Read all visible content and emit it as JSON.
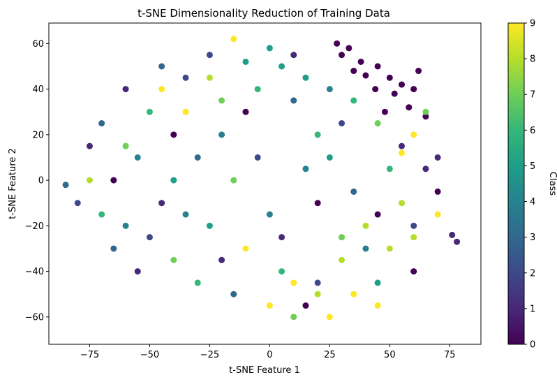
{
  "chart_data": {
    "type": "scatter",
    "title": "t-SNE Dimensionality Reduction of Training Data",
    "xlabel": "t-SNE Feature 1",
    "ylabel": "t-SNE Feature 2",
    "xlim": [
      -92,
      88
    ],
    "ylim": [
      -72,
      69
    ],
    "xticks": [
      -75,
      -50,
      -25,
      0,
      25,
      50,
      75
    ],
    "yticks": [
      -60,
      -40,
      -20,
      0,
      20,
      40,
      60
    ],
    "grid": false,
    "legend": "none",
    "colorbar": {
      "label": "Class",
      "min": 0,
      "max": 9,
      "ticks": [
        0,
        1,
        2,
        3,
        4,
        5,
        6,
        7,
        8,
        9
      ],
      "colormap": "viridis"
    },
    "colors": {
      "viridis": [
        "#440154",
        "#482878",
        "#3e4989",
        "#31688e",
        "#26828e",
        "#1f9e89",
        "#35b779",
        "#6ece58",
        "#b5de2b",
        "#fde725"
      ]
    },
    "series": [
      {
        "values": [
          {
            "x": 28,
            "y": 60,
            "c": 0
          },
          {
            "x": 33,
            "y": 58,
            "c": 0
          },
          {
            "x": 38,
            "y": 52,
            "c": 0
          },
          {
            "x": 45,
            "y": 50,
            "c": 0
          },
          {
            "x": 50,
            "y": 45,
            "c": 0
          },
          {
            "x": 55,
            "y": 42,
            "c": 0
          },
          {
            "x": 52,
            "y": 38,
            "c": 0
          },
          {
            "x": 60,
            "y": 40,
            "c": 0
          },
          {
            "x": 44,
            "y": 40,
            "c": 0
          },
          {
            "x": 58,
            "y": 32,
            "c": 0
          },
          {
            "x": 65,
            "y": 28,
            "c": 0
          },
          {
            "x": 48,
            "y": 30,
            "c": 0
          },
          {
            "x": 40,
            "y": 46,
            "c": 0
          },
          {
            "x": 62,
            "y": 48,
            "c": 0
          },
          {
            "x": 30,
            "y": 55,
            "c": 0
          },
          {
            "x": 35,
            "y": 48,
            "c": 0
          },
          {
            "x": -40,
            "y": 20,
            "c": 0
          },
          {
            "x": -65,
            "y": 0,
            "c": 0
          },
          {
            "x": 20,
            "y": -10,
            "c": 0
          },
          {
            "x": 60,
            "y": -40,
            "c": 0
          },
          {
            "x": 15,
            "y": -55,
            "c": 0
          },
          {
            "x": -10,
            "y": 30,
            "c": 0
          },
          {
            "x": 45,
            "y": -15,
            "c": 0
          },
          {
            "x": 70,
            "y": -5,
            "c": 0
          },
          {
            "x": -20,
            "y": -35,
            "c": 1
          },
          {
            "x": -55,
            "y": -40,
            "c": 1
          },
          {
            "x": 65,
            "y": 5,
            "c": 1
          },
          {
            "x": 70,
            "y": 10,
            "c": 1
          },
          {
            "x": -60,
            "y": 40,
            "c": 1
          },
          {
            "x": 10,
            "y": 55,
            "c": 1
          },
          {
            "x": -45,
            "y": -10,
            "c": 1
          },
          {
            "x": 5,
            "y": -25,
            "c": 1
          },
          {
            "x": 55,
            "y": 15,
            "c": 1
          },
          {
            "x": -75,
            "y": 15,
            "c": 1
          },
          {
            "x": 78,
            "y": -27,
            "c": 1
          },
          {
            "x": 76,
            "y": -24,
            "c": 1
          },
          {
            "x": -35,
            "y": 45,
            "c": 2
          },
          {
            "x": -80,
            "y": -10,
            "c": 2
          },
          {
            "x": -5,
            "y": 10,
            "c": 2
          },
          {
            "x": 30,
            "y": 25,
            "c": 2
          },
          {
            "x": -50,
            "y": -25,
            "c": 2
          },
          {
            "x": 20,
            "y": -45,
            "c": 2
          },
          {
            "x": -25,
            "y": 55,
            "c": 2
          },
          {
            "x": 60,
            "y": -20,
            "c": 2
          },
          {
            "x": -65,
            "y": -30,
            "c": 3
          },
          {
            "x": -30,
            "y": 10,
            "c": 3
          },
          {
            "x": 10,
            "y": 35,
            "c": 3
          },
          {
            "x": -45,
            "y": 50,
            "c": 3
          },
          {
            "x": -15,
            "y": -50,
            "c": 3
          },
          {
            "x": 35,
            "y": -5,
            "c": 3
          },
          {
            "x": -70,
            "y": 25,
            "c": 3
          },
          {
            "x": -85,
            "y": -2,
            "c": 3
          },
          {
            "x": -20,
            "y": 20,
            "c": 4
          },
          {
            "x": -55,
            "y": 10,
            "c": 4
          },
          {
            "x": 0,
            "y": -15,
            "c": 4
          },
          {
            "x": 25,
            "y": 40,
            "c": 4
          },
          {
            "x": -35,
            "y": -15,
            "c": 4
          },
          {
            "x": 40,
            "y": -30,
            "c": 4
          },
          {
            "x": -60,
            "y": -20,
            "c": 4
          },
          {
            "x": 15,
            "y": 5,
            "c": 4
          },
          {
            "x": 0,
            "y": 58,
            "c": 5
          },
          {
            "x": 5,
            "y": 50,
            "c": 5
          },
          {
            "x": -10,
            "y": 52,
            "c": 5
          },
          {
            "x": 15,
            "y": 45,
            "c": 5
          },
          {
            "x": -40,
            "y": 0,
            "c": 5
          },
          {
            "x": 25,
            "y": 10,
            "c": 5
          },
          {
            "x": -25,
            "y": -20,
            "c": 5
          },
          {
            "x": 45,
            "y": -45,
            "c": 5
          },
          {
            "x": -5,
            "y": 40,
            "c": 6
          },
          {
            "x": -50,
            "y": 30,
            "c": 6
          },
          {
            "x": 20,
            "y": 20,
            "c": 6
          },
          {
            "x": -70,
            "y": -15,
            "c": 6
          },
          {
            "x": 5,
            "y": -40,
            "c": 6
          },
          {
            "x": 50,
            "y": 5,
            "c": 6
          },
          {
            "x": -30,
            "y": -45,
            "c": 6
          },
          {
            "x": 35,
            "y": 35,
            "c": 6
          },
          {
            "x": -15,
            "y": 0,
            "c": 7
          },
          {
            "x": 45,
            "y": 25,
            "c": 7
          },
          {
            "x": -60,
            "y": 15,
            "c": 7
          },
          {
            "x": 30,
            "y": -25,
            "c": 7
          },
          {
            "x": -40,
            "y": -35,
            "c": 7
          },
          {
            "x": 65,
            "y": 30,
            "c": 7
          },
          {
            "x": -20,
            "y": 35,
            "c": 7
          },
          {
            "x": 10,
            "y": -60,
            "c": 7
          },
          {
            "x": 40,
            "y": -20,
            "c": 8
          },
          {
            "x": 50,
            "y": -30,
            "c": 8
          },
          {
            "x": 30,
            "y": -35,
            "c": 8
          },
          {
            "x": 55,
            "y": -10,
            "c": 8
          },
          {
            "x": -75,
            "y": 0,
            "c": 8
          },
          {
            "x": -25,
            "y": 45,
            "c": 8
          },
          {
            "x": 20,
            "y": -50,
            "c": 8
          },
          {
            "x": 60,
            "y": -25,
            "c": 8
          },
          {
            "x": 10,
            "y": -45,
            "c": 9
          },
          {
            "x": 0,
            "y": -55,
            "c": 9
          },
          {
            "x": 25,
            "y": -60,
            "c": 9
          },
          {
            "x": 35,
            "y": -50,
            "c": 9
          },
          {
            "x": 55,
            "y": 12,
            "c": 9
          },
          {
            "x": 60,
            "y": 20,
            "c": 9
          },
          {
            "x": -35,
            "y": 30,
            "c": 9
          },
          {
            "x": -10,
            "y": -30,
            "c": 9
          },
          {
            "x": 45,
            "y": -55,
            "c": 9
          },
          {
            "x": -45,
            "y": 40,
            "c": 9
          },
          {
            "x": 70,
            "y": -15,
            "c": 9
          },
          {
            "x": -15,
            "y": 62,
            "c": 9
          }
        ]
      }
    ]
  }
}
